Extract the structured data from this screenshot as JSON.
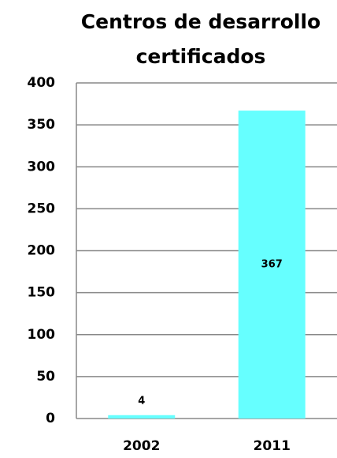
{
  "chart_data": {
    "type": "bar",
    "title": "Centros de desarrollo certificados",
    "categories": [
      "2002",
      "2011"
    ],
    "values": [
      4,
      367
    ],
    "color": "#66ffff",
    "ylim": [
      0,
      400
    ],
    "yticks": [
      0,
      50,
      100,
      150,
      200,
      250,
      300,
      350,
      400
    ],
    "grid": true
  }
}
